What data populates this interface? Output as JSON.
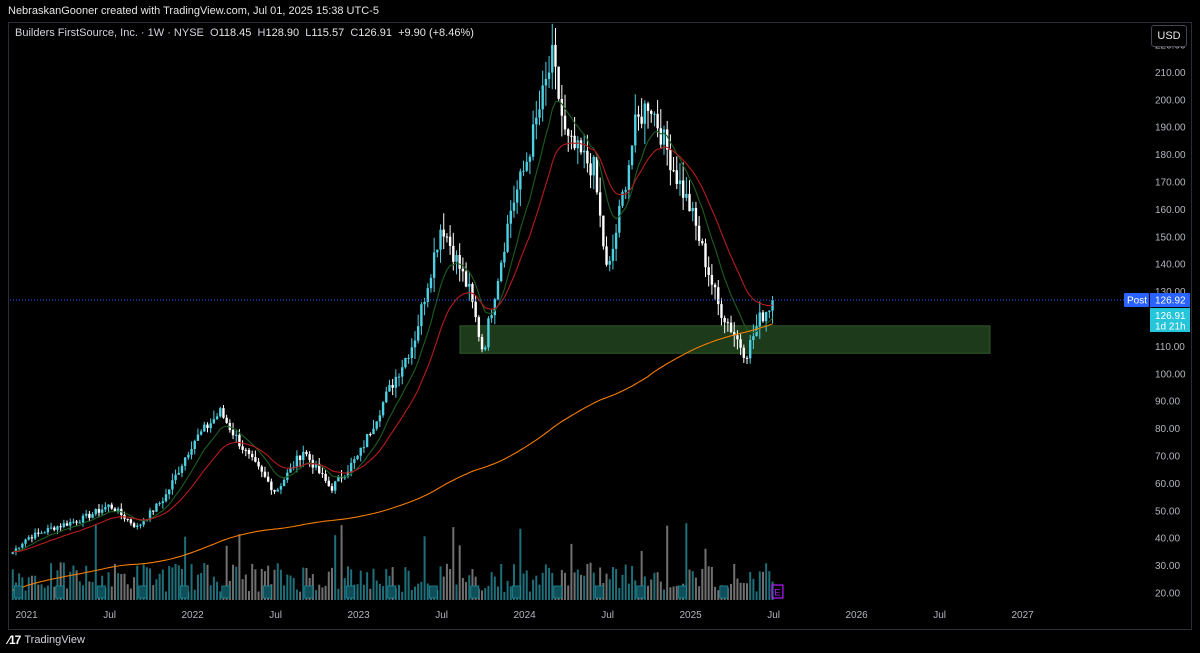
{
  "header": {
    "title": "NebraskanGooner created with TradingView.com, Jul 01, 2025 15:38 UTC-5"
  },
  "legend": {
    "symbol": "Builders FirstSource, Inc. · 1W · NYSE",
    "open_label": "O",
    "open": "118.45",
    "high_label": "H",
    "high": "128.90",
    "low_label": "L",
    "low": "115.57",
    "close_label": "C",
    "close": "126.91",
    "change": "+9.90 (+8.46%)"
  },
  "currency": "USD",
  "price_tags": {
    "post_label": "Post",
    "post_value": "126.92",
    "last_value": "126.91",
    "countdown": "1d 21h"
  },
  "earnings_marker": "E",
  "logo": "TradingView",
  "colors": {
    "up": "#4dd0e1",
    "down": "#ffffff",
    "ema_fast": "#1b5e20",
    "ema_mid": "#b71c1c",
    "sma_long": "#f57c00",
    "zone": "#1d3a1a",
    "post_tag": "#2962ff",
    "last_tag": "#26c6da",
    "earnings": "#b51aff"
  },
  "chart_data": {
    "type": "line",
    "series": [
      {
        "name": "",
        "x": [
          "2020-12",
          "2021-01",
          "2021-03",
          "2021-05",
          "2021-07",
          "2021-09",
          "2021-11",
          "2022-01",
          "2022-03",
          "2022-05",
          "2022-07",
          "2022-09",
          "2022-11",
          "2023-01",
          "2023-03",
          "2023-05",
          "2023-07",
          "2023-09",
          "2023-10",
          "2023-12",
          "2024-01",
          "2024-03",
          "2024-04",
          "2024-06",
          "2024-07",
          "2024-09",
          "2024-10",
          "2024-12",
          "2025-01",
          "2025-03",
          "2025-05",
          "2025-06",
          "2025-07"
        ],
        "values": [
          35,
          40,
          44,
          47,
          52,
          44,
          55,
          75,
          86,
          70,
          57,
          72,
          58,
          70,
          92,
          112,
          155,
          130,
          108,
          160,
          175,
          215,
          185,
          175,
          135,
          190,
          200,
          172,
          160,
          125,
          107,
          120,
          126.91
        ]
      }
    ],
    "y_ticks": [
      "220.00",
      "210.00",
      "200.00",
      "190.00",
      "180.00",
      "170.00",
      "160.00",
      "150.00",
      "140.00",
      "130.00",
      "120.00",
      "110.00",
      "100.00",
      "90.00",
      "80.00",
      "70.00",
      "60.00",
      "50.00",
      "40.00",
      "30.00",
      "20.00"
    ],
    "x_ticks": [
      "2021",
      "Jul",
      "2022",
      "Jul",
      "2023",
      "Jul",
      "2024",
      "Jul",
      "2025",
      "Jul",
      "2026",
      "Jul",
      "2027"
    ],
    "support_zone": [
      107.5,
      117.5
    ],
    "ylim": [
      17,
      222
    ],
    "grid": false
  }
}
